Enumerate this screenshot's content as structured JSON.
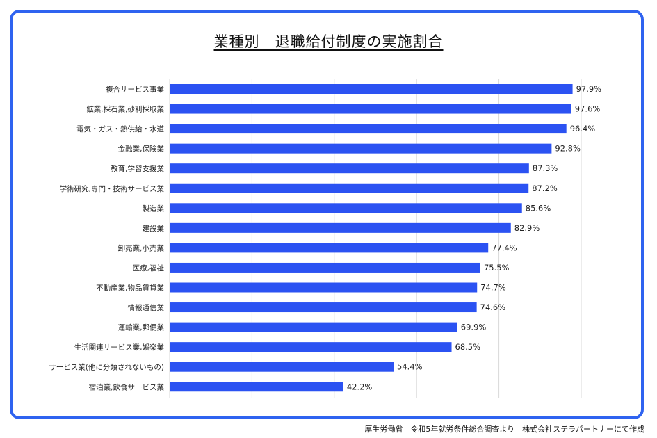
{
  "chart_data": {
    "type": "bar",
    "orientation": "horizontal",
    "title": "業種別　退職給付制度の実施割合",
    "categories": [
      "複合サービス事業",
      "鉱業,採石業,砂利採取業",
      "電気・ガス・熱供給・水道",
      "金融業,保険業",
      "教育,学習支援業",
      "学術研究,専門・技術サービス業",
      "製造業",
      "建設業",
      "卸売業,小売業",
      "医療,福祉",
      "不動産業,物品賃貸業",
      "情報通信業",
      "運輸業,郵便業",
      "生活関連サービス業,娯楽業",
      "サービス業(他に分類されないもの)",
      "宿泊業,飲食サービス業"
    ],
    "values": [
      97.9,
      97.6,
      96.4,
      92.8,
      87.3,
      87.2,
      85.6,
      82.9,
      77.4,
      75.5,
      74.7,
      74.6,
      69.9,
      68.5,
      54.4,
      42.2
    ],
    "value_labels": [
      "97.9%",
      "97.6%",
      "96.4%",
      "92.8%",
      "87.3%",
      "87.2%",
      "85.6%",
      "82.9%",
      "77.4%",
      "75.5%",
      "74.7%",
      "74.6%",
      "69.9%",
      "68.5%",
      "54.4%",
      "42.2%"
    ],
    "xlim": [
      0,
      100
    ],
    "grid": true,
    "bar_color": "#2b52f2",
    "grid_color": "#d9d9d9"
  },
  "frame_color": "#2f63f0",
  "source_note": "厚生労働省　令和5年就労条件総合調査より　株式会社ステラパートナーにて作成"
}
